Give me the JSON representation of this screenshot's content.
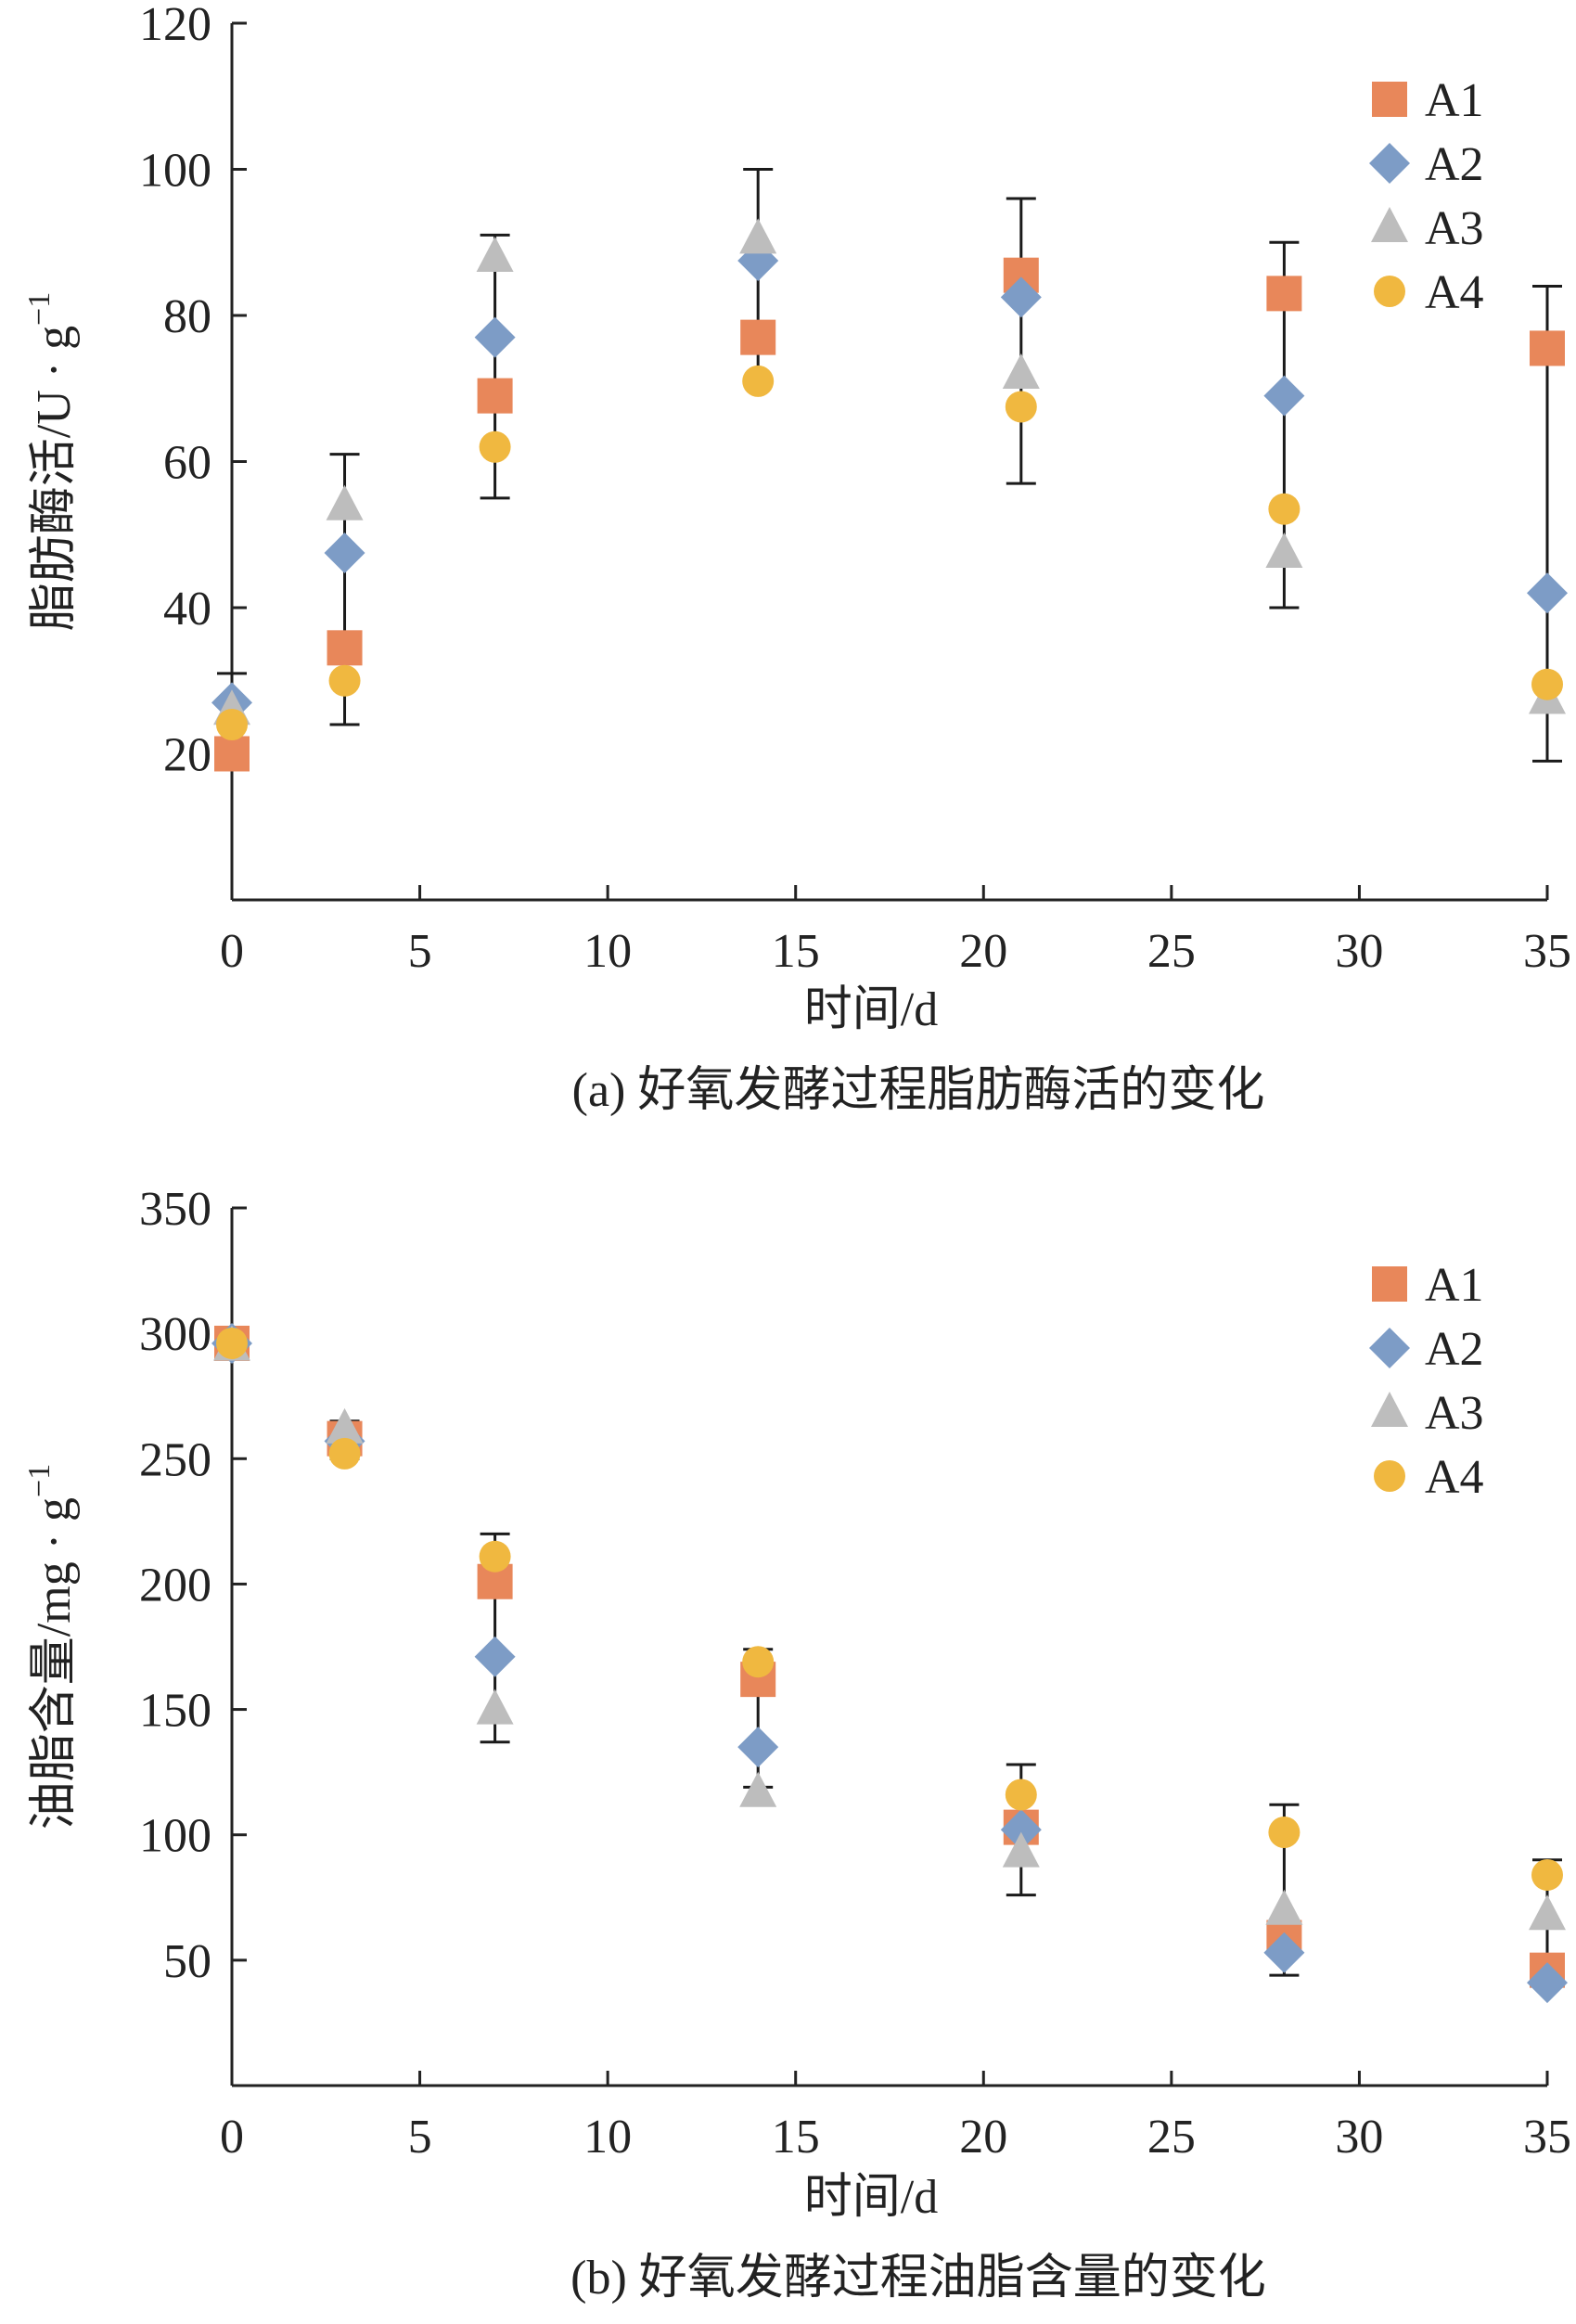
{
  "colors": {
    "A1": "#E8875A",
    "A2": "#7D9CC6",
    "A3": "#BDBDBD",
    "A4": "#F0B840",
    "axis": "#222222"
  },
  "chart_data": [
    {
      "type": "scatter",
      "caption": "(a) 好氧发酵过程脂肪酶活的变化",
      "xlabel": "时间/d",
      "ylabel": "脂肪酶活/U · g",
      "ylabel_sup": "−1",
      "xlim": [
        0,
        35
      ],
      "ylim": [
        0,
        120
      ],
      "xticks": [
        0,
        5,
        10,
        15,
        20,
        25,
        30,
        35
      ],
      "yticks": [
        20,
        40,
        60,
        80,
        100,
        120
      ],
      "legend": "top-right",
      "error_bars": [
        {
          "x": 0,
          "low": 20,
          "high": 31
        },
        {
          "x": 3,
          "low": 24,
          "high": 61
        },
        {
          "x": 7,
          "low": 55,
          "high": 91
        },
        {
          "x": 14,
          "low": 71,
          "high": 100
        },
        {
          "x": 21,
          "low": 57,
          "high": 96
        },
        {
          "x": 28,
          "low": 40,
          "high": 90
        },
        {
          "x": 35,
          "low": 19,
          "high": 84
        }
      ],
      "series": [
        {
          "name": "A1",
          "marker": "square",
          "x": [
            0,
            3,
            7,
            14,
            21,
            28,
            35
          ],
          "y": [
            20,
            34.5,
            69,
            77,
            85.5,
            83,
            75.5
          ]
        },
        {
          "name": "A2",
          "marker": "diamond",
          "x": [
            0,
            3,
            7,
            14,
            21,
            28,
            35
          ],
          "y": [
            27,
            47.5,
            77,
            87.5,
            82.5,
            69,
            42
          ]
        },
        {
          "name": "A3",
          "marker": "triangle",
          "x": [
            0,
            3,
            7,
            14,
            21,
            28,
            35
          ],
          "y": [
            26,
            54,
            88,
            90.5,
            72,
            47.5,
            27.5
          ]
        },
        {
          "name": "A4",
          "marker": "circle",
          "x": [
            0,
            3,
            7,
            14,
            21,
            28,
            35
          ],
          "y": [
            24,
            30,
            62,
            71,
            67.5,
            53.5,
            29.5
          ]
        }
      ]
    },
    {
      "type": "scatter",
      "caption": "(b) 好氧发酵过程油脂含量的变化",
      "xlabel": "时间/d",
      "ylabel": "油脂含量/mg · g",
      "ylabel_sup": "−1",
      "xlim": [
        0,
        35
      ],
      "ylim": [
        0,
        350
      ],
      "xticks": [
        0,
        5,
        10,
        15,
        20,
        25,
        30,
        35
      ],
      "yticks": [
        50,
        100,
        150,
        200,
        250,
        300,
        350
      ],
      "legend": "top-right",
      "error_bars": [
        {
          "x": 0,
          "low": 290,
          "high": 300
        },
        {
          "x": 3,
          "low": 250,
          "high": 265
        },
        {
          "x": 7,
          "low": 137,
          "high": 220
        },
        {
          "x": 14,
          "low": 119,
          "high": 174
        },
        {
          "x": 21,
          "low": 76,
          "high": 128
        },
        {
          "x": 28,
          "low": 44,
          "high": 112
        },
        {
          "x": 35,
          "low": 40,
          "high": 90
        }
      ],
      "series": [
        {
          "name": "A1",
          "marker": "square",
          "x": [
            0,
            3,
            7,
            14,
            21,
            28,
            35
          ],
          "y": [
            296,
            258,
            201,
            162,
            103,
            59,
            46
          ]
        },
        {
          "name": "A2",
          "marker": "diamond",
          "x": [
            0,
            3,
            7,
            14,
            21,
            28,
            35
          ],
          "y": [
            296,
            257,
            171,
            135,
            102,
            53,
            41
          ]
        },
        {
          "name": "A3",
          "marker": "triangle",
          "x": [
            0,
            3,
            7,
            14,
            21,
            28,
            35
          ],
          "y": [
            295,
            262,
            150,
            117,
            93,
            70,
            68
          ]
        },
        {
          "name": "A4",
          "marker": "circle",
          "x": [
            0,
            3,
            7,
            14,
            21,
            28,
            35
          ],
          "y": [
            296,
            252,
            211,
            169,
            116,
            101,
            84
          ]
        }
      ]
    }
  ]
}
